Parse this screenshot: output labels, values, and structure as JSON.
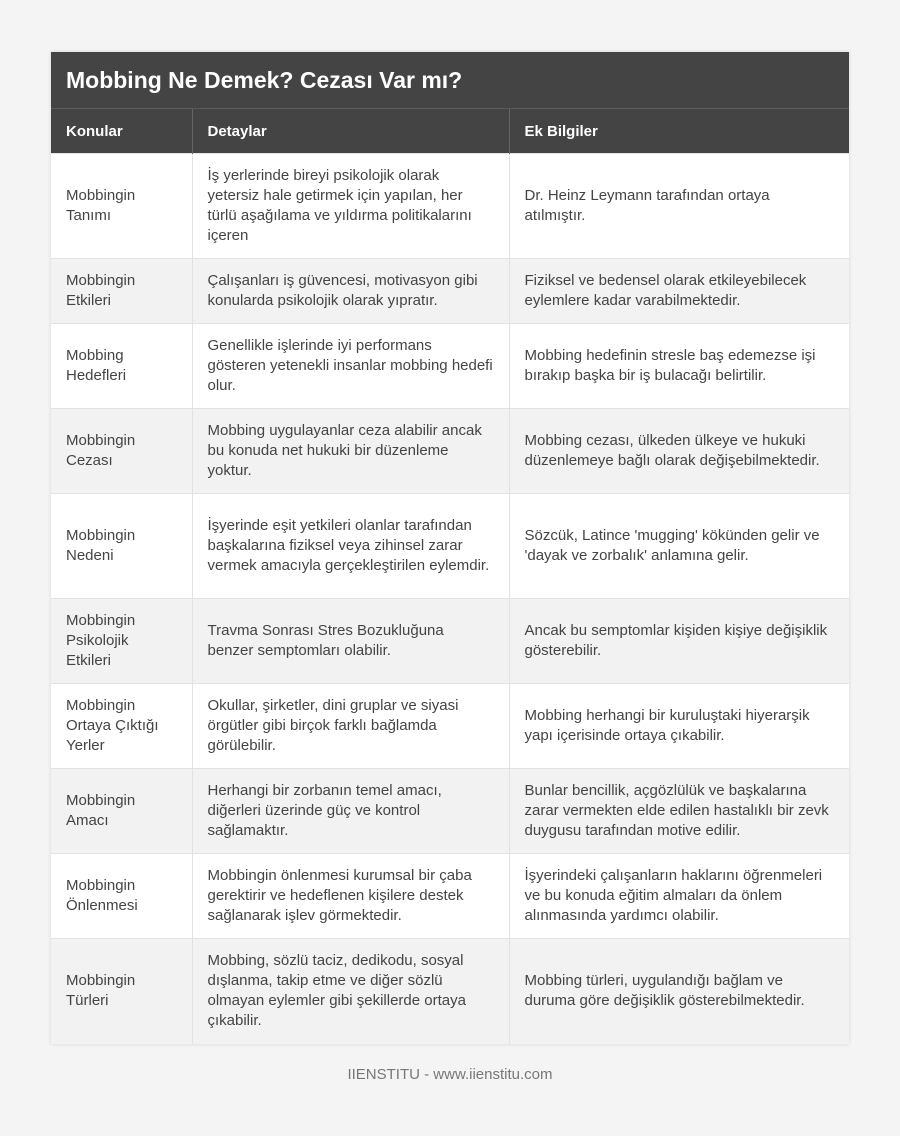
{
  "title": "Mobbing Ne Demek? Cezası Var mı?",
  "headers": [
    "Konular",
    "Detaylar",
    "Ek Bilgiler"
  ],
  "rows": [
    [
      "Mobbingin Tanımı",
      "İş yerlerinde bireyi psikolojik olarak yetersiz hale getirmek için yapılan, her türlü aşağılama ve yıldırma politikalarını içeren",
      "Dr. Heinz Leymann tarafından ortaya atılmıştır."
    ],
    [
      "Mobbingin Etkileri",
      "Çalışanları iş güvencesi, motivasyon gibi konularda psikolojik olarak yıpratır.",
      "Fiziksel ve bedensel olarak etkileyebilecek eylemlere kadar varabilmektedir."
    ],
    [
      "Mobbing Hedefleri",
      "Genellikle işlerinde iyi performans gösteren yetenekli insanlar mobbing hedefi olur.",
      "Mobbing hedefinin stresle baş edemezse işi bırakıp başka bir iş bulacağı belirtilir."
    ],
    [
      "Mobbingin Cezası",
      "Mobbing uygulayanlar ceza alabilir ancak bu konuda net hukuki bir düzenleme yoktur.",
      "Mobbing cezası, ülkeden ülkeye ve hukuki düzenlemeye bağlı olarak değişebilmektedir."
    ],
    [
      "Mobbingin Nedeni",
      "İşyerinde eşit yetkileri olanlar tarafından başkalarına fiziksel veya zihinsel zarar vermek amacıyla gerçekleştirilen eylemdir.",
      "Sözcük, Latince 'mugging' kökünden gelir ve 'dayak ve zorbalık' anlamına gelir."
    ],
    [
      "Mobbingin Psikolojik Etkileri",
      "Travma Sonrası Stres Bozukluğuna benzer semptomları olabilir.",
      "Ancak bu semptomlar kişiden kişiye değişiklik gösterebilir."
    ],
    [
      "Mobbingin Ortaya Çıktığı Yerler",
      "Okullar, şirketler, dini gruplar ve siyasi örgütler gibi birçok farklı bağlamda görülebilir.",
      "Mobbing herhangi bir kuruluştaki hiyerarşik yapı içerisinde ortaya çıkabilir."
    ],
    [
      "Mobbingin Amacı",
      "Herhangi bir zorbanın temel amacı, diğerleri üzerinde güç ve kontrol sağlamaktır.",
      "Bunlar bencillik, açgözlülük ve başkalarına zarar vermekten elde edilen hastalıklı bir zevk duygusu tarafından motive edilir."
    ],
    [
      "Mobbingin Önlenmesi",
      "Mobbingin önlenmesi kurumsal bir çaba gerektirir ve hedeflenen kişilere destek sağlanarak işlev görmektedir.",
      "İşyerindeki çalışanların haklarını öğrenmeleri ve bu konuda eğitim almaları da önlem alınmasında yardımcı olabilir."
    ],
    [
      "Mobbingin Türleri",
      "Mobbing, sözlü taciz, dedikodu, sosyal dışlanma, takip etme ve diğer sözlü olmayan eylemler gibi şekillerde ortaya çıkabilir.",
      "Mobbing türleri, uygulandığı bağlam ve duruma göre değişiklik gösterebilmektedir."
    ]
  ],
  "footer": "IIENSTITU - www.iienstitu.com"
}
